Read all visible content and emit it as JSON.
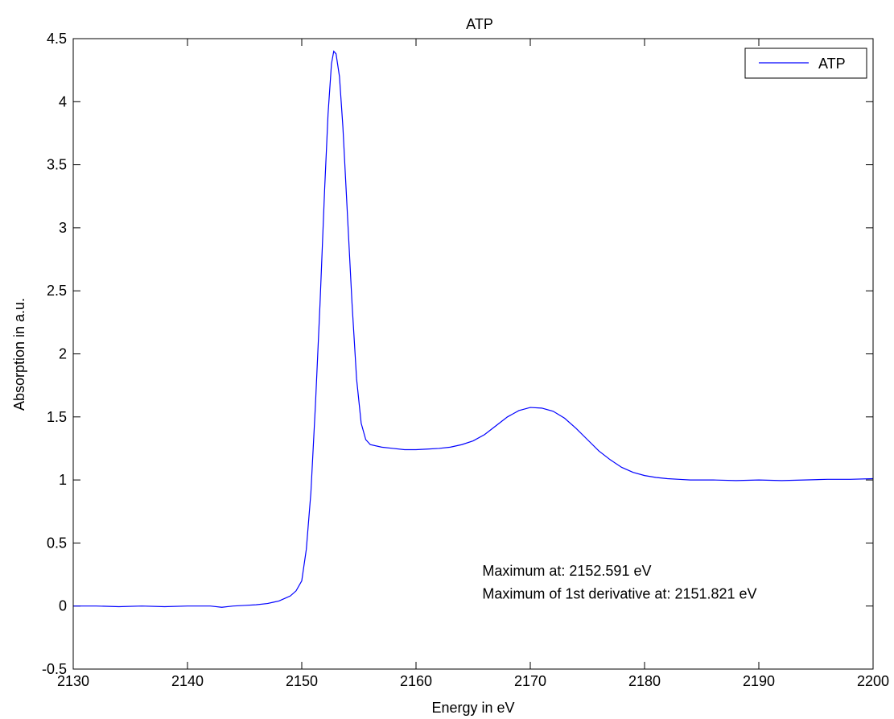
{
  "chart_data": {
    "type": "line",
    "title": "ATP",
    "xlabel": "Energy in eV",
    "ylabel": "Absorption in a.u.",
    "xlim": [
      2130,
      2200
    ],
    "ylim": [
      -0.5,
      4.5
    ],
    "xticks": [
      2130,
      2140,
      2150,
      2160,
      2170,
      2180,
      2190,
      2200
    ],
    "xtick_labels": [
      "2130",
      "2140",
      "2150",
      "2160",
      "2170",
      "2180",
      "2190",
      "2200"
    ],
    "yticks": [
      -0.5,
      0,
      0.5,
      1,
      1.5,
      2,
      2.5,
      3,
      3.5,
      4,
      4.5
    ],
    "ytick_labels": [
      "-0.5",
      "0",
      "0.5",
      "1",
      "1.5",
      "2",
      "2.5",
      "3",
      "3.5",
      "4",
      "4.5"
    ],
    "grid": false,
    "legend_position": "top-right",
    "colors": {
      "series": "#0000ff",
      "axes": "#000000",
      "background": "#ffffff"
    },
    "series": [
      {
        "name": "ATP",
        "x": [
          2130,
          2132,
          2134,
          2136,
          2138,
          2140,
          2142,
          2143,
          2144,
          2145,
          2146,
          2147,
          2147.5,
          2148,
          2148.5,
          2149,
          2149.5,
          2150,
          2150.4,
          2150.8,
          2151.2,
          2151.6,
          2152,
          2152.3,
          2152.6,
          2152.8,
          2153,
          2153.3,
          2153.6,
          2154,
          2154.4,
          2154.8,
          2155.2,
          2155.6,
          2156,
          2157,
          2158,
          2159,
          2160,
          2161,
          2162,
          2163,
          2164,
          2165,
          2166,
          2167,
          2168,
          2169,
          2170,
          2171,
          2172,
          2173,
          2174,
          2175,
          2176,
          2177,
          2178,
          2179,
          2180,
          2181,
          2182,
          2183,
          2184,
          2186,
          2188,
          2190,
          2192,
          2194,
          2196,
          2198,
          2200
        ],
        "y": [
          0,
          0,
          -0.005,
          0,
          -0.005,
          0,
          0,
          -0.01,
          0,
          0.005,
          0.01,
          0.02,
          0.03,
          0.04,
          0.06,
          0.08,
          0.12,
          0.2,
          0.45,
          0.9,
          1.6,
          2.4,
          3.3,
          3.9,
          4.3,
          4.4,
          4.38,
          4.2,
          3.8,
          3.1,
          2.4,
          1.8,
          1.45,
          1.32,
          1.28,
          1.26,
          1.25,
          1.24,
          1.24,
          1.245,
          1.25,
          1.26,
          1.28,
          1.31,
          1.36,
          1.43,
          1.5,
          1.55,
          1.575,
          1.57,
          1.545,
          1.49,
          1.41,
          1.32,
          1.23,
          1.16,
          1.1,
          1.06,
          1.035,
          1.02,
          1.01,
          1.005,
          1.0,
          1.0,
          0.995,
          1.0,
          0.995,
          1.0,
          1.005,
          1.005,
          1.01
        ]
      }
    ],
    "annotations": [
      {
        "text": "Maximum at: 2152.591 eV",
        "x": 2165.8,
        "y": 0.24
      },
      {
        "text": "Maximum of 1st derivative at: 2151.821 eV",
        "x": 2165.8,
        "y": 0.06
      }
    ]
  }
}
